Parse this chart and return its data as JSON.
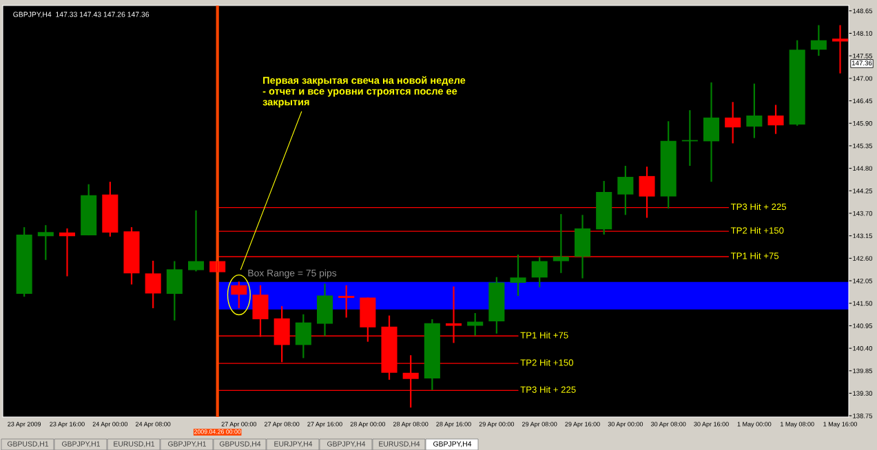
{
  "chart_data": {
    "type": "candlestick",
    "title": "GBPJPY,H4  147.33 147.43 147.26 147.36",
    "categories": [
      "23 Apr 2009",
      null,
      "23 Apr 16:00",
      null,
      "24 Apr 00:00",
      null,
      "24 Apr 08:00",
      null,
      null,
      "2009.04.26 00:00",
      "27 Apr 00:00",
      null,
      "27 Apr 08:00",
      null,
      "27 Apr 16:00",
      null,
      "28 Apr 00:00",
      null,
      "28 Apr 08:00",
      null,
      "28 Apr 16:00",
      null,
      "29 Apr 00:00",
      null,
      "29 Apr 08:00",
      null,
      "29 Apr 16:00",
      null,
      "30 Apr 00:00",
      null,
      "30 Apr 08:00",
      null,
      "30 Apr 16:00",
      null,
      "1 May 00:00",
      null,
      "1 May 08:00",
      null,
      "1 May 16:00"
    ],
    "ohlc": [
      [
        141.73,
        143.36,
        141.66,
        143.18
      ],
      [
        143.14,
        143.41,
        142.56,
        143.24
      ],
      [
        143.23,
        143.33,
        142.16,
        143.14
      ],
      [
        143.16,
        144.41,
        143.16,
        144.14
      ],
      [
        144.16,
        144.47,
        143.13,
        143.23
      ],
      [
        143.26,
        143.36,
        141.96,
        142.23
      ],
      [
        142.23,
        142.54,
        141.38,
        141.74
      ],
      [
        141.73,
        142.53,
        141.08,
        142.33
      ],
      [
        142.31,
        143.77,
        142.28,
        142.53
      ],
      [
        142.53,
        142.53,
        142.26,
        142.26
      ],
      [
        141.94,
        142.03,
        141.38,
        141.71
      ],
      [
        141.71,
        141.94,
        140.68,
        141.11
      ],
      [
        141.13,
        141.43,
        140.06,
        140.48
      ],
      [
        140.48,
        141.23,
        140.16,
        141.03
      ],
      [
        141.0,
        141.98,
        140.7,
        141.69
      ],
      [
        141.68,
        141.94,
        141.15,
        141.63
      ],
      [
        141.64,
        141.64,
        140.56,
        140.91
      ],
      [
        140.93,
        141.2,
        139.63,
        139.8
      ],
      [
        139.8,
        140.23,
        138.95,
        139.65
      ],
      [
        139.66,
        141.11,
        139.38,
        141.01
      ],
      [
        141.01,
        141.91,
        140.53,
        140.95
      ],
      [
        140.95,
        141.26,
        140.71,
        141.05
      ],
      [
        141.06,
        142.14,
        140.76,
        142.01
      ],
      [
        142.0,
        142.69,
        141.68,
        142.13
      ],
      [
        142.13,
        142.63,
        141.89,
        142.53
      ],
      [
        142.53,
        143.68,
        142.24,
        142.64
      ],
      [
        142.64,
        143.66,
        142.11,
        143.33
      ],
      [
        143.31,
        144.49,
        143.18,
        144.22
      ],
      [
        144.16,
        144.86,
        143.66,
        144.59
      ],
      [
        144.61,
        144.84,
        143.59,
        144.11
      ],
      [
        144.11,
        145.95,
        143.82,
        145.47
      ],
      [
        145.46,
        146.22,
        144.86,
        145.49
      ],
      [
        145.46,
        146.9,
        144.47,
        146.04
      ],
      [
        146.04,
        146.42,
        145.41,
        145.8
      ],
      [
        145.82,
        146.87,
        145.54,
        146.09
      ],
      [
        146.09,
        146.35,
        145.64,
        145.85
      ],
      [
        145.87,
        147.93,
        145.84,
        147.7
      ],
      [
        147.7,
        148.3,
        147.55,
        147.93
      ],
      [
        147.97,
        148.3,
        147.12,
        147.9
      ]
    ],
    "colors": [
      "#008000",
      "#008000",
      "#ff0000",
      "#008000",
      "#ff0000",
      "#ff0000",
      "#ff0000",
      "#008000",
      "#008000",
      "#ff0000",
      "#ff0000",
      "#ff0000",
      "#ff0000",
      "#008000",
      "#008000",
      "#ff0000",
      "#ff0000",
      "#ff0000",
      "#ff0000",
      "#008000",
      "#ff0000",
      "#008000",
      "#008000",
      "#008000",
      "#008000",
      "#008000",
      "#008000",
      "#008000",
      "#008000",
      "#ff0000",
      "#008000",
      "#008000",
      "#008000",
      "#ff0000",
      "#008000",
      "#ff0000",
      "#008000",
      "#008000",
      "#ff0000"
    ],
    "ylim": [
      138.72,
      148.78
    ],
    "yticks": [
      148.65,
      {
        "value": 148.1,
        "label": "148.10"
      },
      147.55,
      {
        "value": 147.0,
        "label": "147.00"
      },
      146.45,
      {
        "value": 145.9,
        "label": "145.90"
      },
      145.35,
      {
        "value": 144.8,
        "label": "144.80"
      },
      144.25,
      {
        "value": 143.7,
        "label": "143.70"
      },
      143.15,
      {
        "value": 142.6,
        "label": "142.60"
      },
      142.05,
      {
        "value": 141.5,
        "label": "141.50"
      },
      140.95,
      {
        "value": 140.4,
        "label": "140.40"
      },
      139.85,
      {
        "value": 139.3,
        "label": "139.30"
      },
      138.75
    ],
    "grid": false,
    "ref_lines": [
      {
        "axis": "x",
        "value": "2009.04.26 00:00",
        "color": "#ff4500"
      },
      {
        "axis": "y",
        "value": 143.84,
        "label": "TP3 Hit + 225",
        "color": "#ff0000"
      },
      {
        "axis": "y",
        "value": 143.26,
        "label": "TP2 Hit +150",
        "color": "#ff0000"
      },
      {
        "axis": "y",
        "value": 142.64,
        "label": "TP1 Hit +75",
        "color": "#ff0000"
      },
      {
        "axis": "y",
        "value": 140.7,
        "label": "TP1 Hit +75",
        "color": "#ff0000"
      },
      {
        "axis": "y",
        "value": 140.03,
        "label": "TP2 Hit +150",
        "color": "#ff0000"
      },
      {
        "axis": "y",
        "value": 139.37,
        "label": "TP3 Hit + 225",
        "color": "#ff0000"
      }
    ],
    "bands": [
      {
        "axis": "y",
        "from": 141.35,
        "to": 142.02,
        "label": "Box Range = 75 pips",
        "color": "#0000ff"
      }
    ],
    "annotations": [
      "Первая закрытая свеча на новой неделе - отчет и все уровни строятся после ее закрытия",
      {
        "text": "147.36",
        "y": 147.36
      },
      "GBPUSD,H1",
      "GBPJPY,H1",
      "EURUSD,H1",
      "GBPJPY,H1",
      "GBPUSD,H4",
      "EURJPY,H4",
      "GBPJPY,H4",
      "EURUSD,H4",
      "GBPJPY,H4"
    ]
  }
}
